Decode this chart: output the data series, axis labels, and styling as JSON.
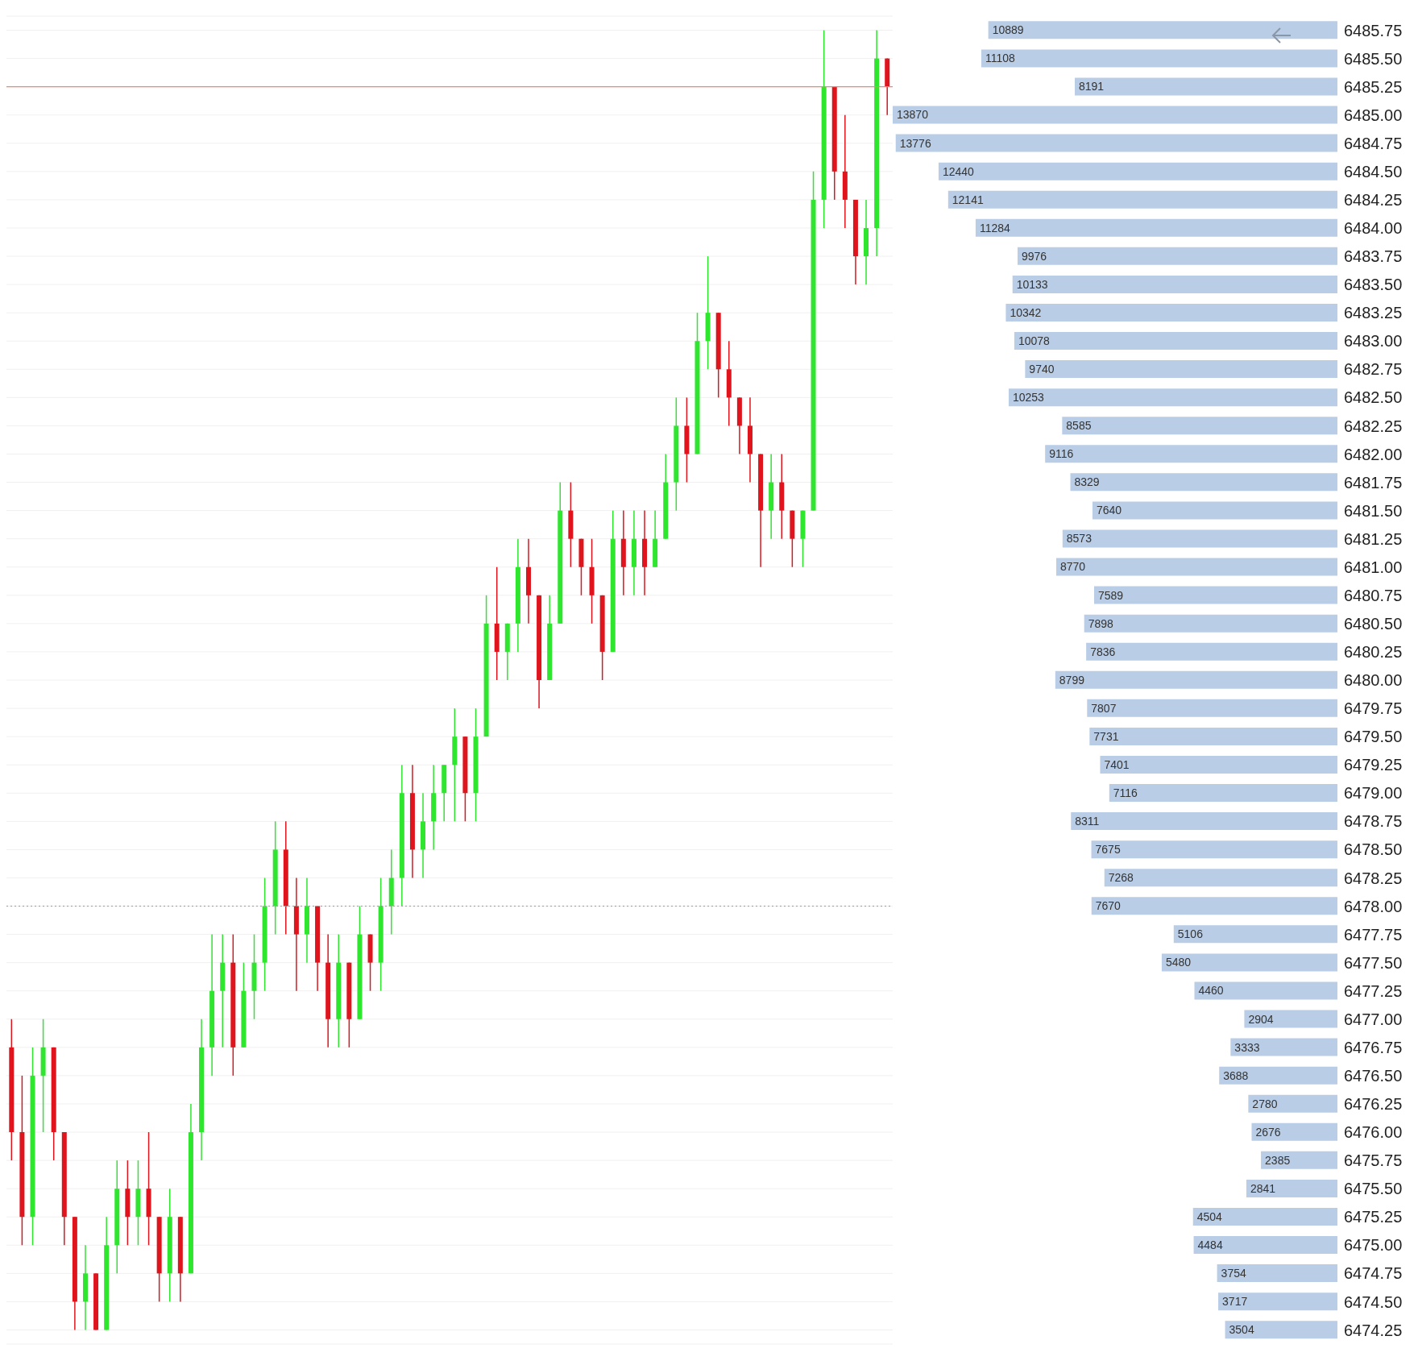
{
  "chart_data": [
    {
      "type": "candlestick",
      "tick_labels": false,
      "grid": "y",
      "categories": [
        null,
        null,
        null,
        null,
        null,
        null,
        null,
        null,
        null,
        null,
        null,
        null,
        null,
        null,
        null,
        null,
        null,
        null,
        null,
        null,
        null,
        null,
        null,
        null,
        null,
        null,
        null,
        null,
        null,
        null,
        null,
        null,
        null,
        null,
        null,
        null,
        null,
        null,
        null,
        null,
        null,
        null,
        null,
        null,
        null,
        null,
        null,
        null,
        null,
        null,
        null,
        null,
        null,
        null,
        null,
        null,
        null,
        null,
        null,
        null,
        null,
        null,
        null,
        null,
        null,
        null,
        null,
        null,
        null,
        null,
        null,
        null,
        null,
        null,
        null,
        null,
        null,
        null,
        null,
        null,
        null,
        null,
        null,
        null
      ],
      "ylim": [
        6474.125,
        6485.875
      ],
      "yticks": [
        6474.25,
        6474.5,
        6474.75,
        6475,
        6475.25,
        6475.5,
        6475.75,
        6476,
        6476.25,
        6476.5,
        6476.75,
        6477,
        6477.25,
        6477.5,
        6477.75,
        6478,
        6478.25,
        6478.5,
        6478.75,
        6479,
        6479.25,
        6479.5,
        6479.75,
        6480,
        6480.25,
        6480.5,
        6480.75,
        6481,
        6481.25,
        6481.5,
        6481.75,
        6482,
        6482.25,
        6482.5,
        6482.75,
        6483,
        6483.25,
        6483.5,
        6483.75,
        6484,
        6484.25,
        6484.5,
        6484.75,
        6485,
        6485.25,
        6485.5,
        6485.75
      ],
      "ohlc": [
        [
          6476.75,
          6477.0,
          6475.75,
          6476.0
        ],
        [
          6476.0,
          6476.5,
          6475.0,
          6475.25
        ],
        [
          6475.25,
          6476.75,
          6475.0,
          6476.5
        ],
        [
          6476.5,
          6477.0,
          6476.0,
          6476.75
        ],
        [
          6476.75,
          6476.75,
          6475.75,
          6476.0
        ],
        [
          6476.0,
          6476.0,
          6475.0,
          6475.25
        ],
        [
          6475.25,
          6475.25,
          6474.25,
          6474.5
        ],
        [
          6474.5,
          6475.0,
          6474.25,
          6474.75
        ],
        [
          6474.75,
          6474.75,
          6474.25,
          6474.25
        ],
        [
          6474.25,
          6475.25,
          6474.25,
          6475.0
        ],
        [
          6475.0,
          6475.75,
          6474.75,
          6475.5
        ],
        [
          6475.5,
          6475.75,
          6475.0,
          6475.25
        ],
        [
          6475.25,
          6475.75,
          6475.0,
          6475.5
        ],
        [
          6475.5,
          6476.0,
          6475.0,
          6475.25
        ],
        [
          6475.25,
          6475.25,
          6474.5,
          6474.75
        ],
        [
          6474.75,
          6475.5,
          6474.5,
          6475.25
        ],
        [
          6475.25,
          6475.25,
          6474.5,
          6474.75
        ],
        [
          6474.75,
          6476.25,
          6474.75,
          6476.0
        ],
        [
          6476.0,
          6477.0,
          6475.75,
          6476.75
        ],
        [
          6476.75,
          6477.75,
          6476.5,
          6477.25
        ],
        [
          6477.25,
          6477.75,
          6476.75,
          6477.5
        ],
        [
          6477.5,
          6477.75,
          6476.5,
          6476.75
        ],
        [
          6476.75,
          6477.5,
          6476.75,
          6477.25
        ],
        [
          6477.25,
          6477.75,
          6477.0,
          6477.5
        ],
        [
          6477.5,
          6478.25,
          6477.25,
          6478.0
        ],
        [
          6478.0,
          6478.75,
          6477.75,
          6478.5
        ],
        [
          6478.5,
          6478.75,
          6477.75,
          6478.0
        ],
        [
          6478.0,
          6478.25,
          6477.25,
          6477.75
        ],
        [
          6477.75,
          6478.25,
          6477.5,
          6478.0
        ],
        [
          6478.0,
          6478.0,
          6477.25,
          6477.5
        ],
        [
          6477.5,
          6477.75,
          6476.75,
          6477.0
        ],
        [
          6477.0,
          6477.75,
          6476.75,
          6477.5
        ],
        [
          6477.5,
          6477.5,
          6476.75,
          6477.0
        ],
        [
          6477.0,
          6478.0,
          6477.0,
          6477.75
        ],
        [
          6477.75,
          6477.75,
          6477.25,
          6477.5
        ],
        [
          6477.5,
          6478.25,
          6477.25,
          6478.0
        ],
        [
          6478.0,
          6478.5,
          6477.75,
          6478.25
        ],
        [
          6478.25,
          6479.25,
          6478.0,
          6479.0
        ],
        [
          6479.0,
          6479.25,
          6478.25,
          6478.5
        ],
        [
          6478.5,
          6479.0,
          6478.25,
          6478.75
        ],
        [
          6478.75,
          6479.25,
          6478.5,
          6479.0
        ],
        [
          6479.0,
          6479.25,
          6478.75,
          6479.25
        ],
        [
          6479.25,
          6479.75,
          6478.75,
          6479.5
        ],
        [
          6479.5,
          6479.5,
          6478.75,
          6479.0
        ],
        [
          6479.0,
          6479.75,
          6478.75,
          6479.5
        ],
        [
          6479.5,
          6480.75,
          6479.5,
          6480.5
        ],
        [
          6480.5,
          6481.0,
          6480.0,
          6480.25
        ],
        [
          6480.25,
          6480.5,
          6480.0,
          6480.5
        ],
        [
          6480.5,
          6481.25,
          6480.25,
          6481.0
        ],
        [
          6481.0,
          6481.25,
          6480.5,
          6480.75
        ],
        [
          6480.75,
          6480.75,
          6479.75,
          6480.0
        ],
        [
          6480.0,
          6480.75,
          6480.0,
          6480.5
        ],
        [
          6480.5,
          6481.75,
          6480.5,
          6481.5
        ],
        [
          6481.5,
          6481.75,
          6481.0,
          6481.25
        ],
        [
          6481.25,
          6481.25,
          6480.75,
          6481.0
        ],
        [
          6481.0,
          6481.25,
          6480.5,
          6480.75
        ],
        [
          6480.75,
          6480.75,
          6480.0,
          6480.25
        ],
        [
          6480.25,
          6481.5,
          6480.25,
          6481.25
        ],
        [
          6481.25,
          6481.5,
          6480.75,
          6481.0
        ],
        [
          6481.0,
          6481.5,
          6480.75,
          6481.25
        ],
        [
          6481.25,
          6481.5,
          6480.75,
          6481.0
        ],
        [
          6481.0,
          6481.5,
          6481.0,
          6481.25
        ],
        [
          6481.25,
          6482.0,
          6481.25,
          6481.75
        ],
        [
          6481.75,
          6482.5,
          6481.5,
          6482.25
        ],
        [
          6482.25,
          6482.5,
          6481.75,
          6482.0
        ],
        [
          6482.0,
          6483.25,
          6482.0,
          6483.0
        ],
        [
          6483.0,
          6483.75,
          6482.75,
          6483.25
        ],
        [
          6483.25,
          6483.25,
          6482.5,
          6482.75
        ],
        [
          6482.75,
          6483.0,
          6482.25,
          6482.5
        ],
        [
          6482.5,
          6482.5,
          6482.0,
          6482.25
        ],
        [
          6482.25,
          6482.5,
          6481.75,
          6482.0
        ],
        [
          6482.0,
          6482.0,
          6481.0,
          6481.5
        ],
        [
          6481.5,
          6482.0,
          6481.25,
          6481.75
        ],
        [
          6481.75,
          6482.0,
          6481.25,
          6481.5
        ],
        [
          6481.5,
          6481.5,
          6481.0,
          6481.25
        ],
        [
          6481.25,
          6481.5,
          6481.0,
          6481.5
        ],
        [
          6481.5,
          6484.5,
          6481.5,
          6484.25
        ],
        [
          6484.25,
          6485.75,
          6484.0,
          6485.25
        ],
        [
          6485.25,
          6485.25,
          6484.25,
          6484.5
        ],
        [
          6484.5,
          6485.0,
          6484.0,
          6484.25
        ],
        [
          6484.25,
          6484.25,
          6483.5,
          6483.75
        ],
        [
          6483.75,
          6484.25,
          6483.5,
          6484.0
        ],
        [
          6484.0,
          6485.75,
          6483.75,
          6485.5
        ],
        [
          6485.5,
          6485.5,
          6485.0,
          6485.25
        ]
      ],
      "colors": [
        "#e0141c",
        "#e0141c",
        "#2ee62e",
        "#2ee62e",
        "#e0141c",
        "#e0141c",
        "#e0141c",
        "#2ee62e",
        "#e0141c",
        "#2ee62e",
        "#2ee62e",
        "#e0141c",
        "#2ee62e",
        "#e0141c",
        "#e0141c",
        "#2ee62e",
        "#e0141c",
        "#2ee62e",
        "#2ee62e",
        "#2ee62e",
        "#2ee62e",
        "#e0141c",
        "#2ee62e",
        "#2ee62e",
        "#2ee62e",
        "#2ee62e",
        "#e0141c",
        "#e0141c",
        "#2ee62e",
        "#e0141c",
        "#e0141c",
        "#2ee62e",
        "#e0141c",
        "#2ee62e",
        "#e0141c",
        "#2ee62e",
        "#2ee62e",
        "#2ee62e",
        "#e0141c",
        "#2ee62e",
        "#2ee62e",
        "#2ee62e",
        "#2ee62e",
        "#e0141c",
        "#2ee62e",
        "#2ee62e",
        "#e0141c",
        "#2ee62e",
        "#2ee62e",
        "#e0141c",
        "#e0141c",
        "#2ee62e",
        "#2ee62e",
        "#e0141c",
        "#e0141c",
        "#e0141c",
        "#e0141c",
        "#2ee62e",
        "#e0141c",
        "#2ee62e",
        "#e0141c",
        "#2ee62e",
        "#2ee62e",
        "#2ee62e",
        "#e0141c",
        "#2ee62e",
        "#2ee62e",
        "#e0141c",
        "#e0141c",
        "#e0141c",
        "#e0141c",
        "#e0141c",
        "#2ee62e",
        "#e0141c",
        "#e0141c",
        "#2ee62e",
        "#2ee62e",
        "#2ee62e",
        "#e0141c",
        "#e0141c",
        "#e0141c",
        "#2ee62e",
        "#2ee62e",
        "#e0141c"
      ],
      "ref_lines": [
        {
          "axis": "y",
          "value": 6485.25,
          "color": "#f4846a",
          "line_style": "solid"
        },
        {
          "axis": "y",
          "value": 6478.0,
          "color": "#999999",
          "line_style": "dotted"
        }
      ]
    },
    {
      "type": "bar",
      "orientation": "horizontal",
      "data_labels": true,
      "color": "#b9cde6",
      "categories": [
        "6485.75",
        "6485.50",
        "6485.25",
        "6485.00",
        "6484.75",
        "6484.50",
        "6484.25",
        "6484.00",
        "6483.75",
        "6483.50",
        "6483.25",
        "6483.00",
        "6482.75",
        "6482.50",
        "6482.25",
        "6482.00",
        "6481.75",
        "6481.50",
        "6481.25",
        "6481.00",
        "6480.75",
        "6480.50",
        "6480.25",
        "6480.00",
        "6479.75",
        "6479.50",
        "6479.25",
        "6479.00",
        "6478.75",
        "6478.50",
        "6478.25",
        "6478.00",
        "6477.75",
        "6477.50",
        "6477.25",
        "6477.00",
        "6476.75",
        "6476.50",
        "6476.25",
        "6476.00",
        "6475.75",
        "6475.50",
        "6475.25",
        "6475.00",
        "6474.75",
        "6474.50",
        "6474.25"
      ],
      "values": [
        10889,
        11108,
        8191,
        13870,
        13776,
        12440,
        12141,
        11284,
        9976,
        10133,
        10342,
        10078,
        9740,
        10253,
        8585,
        9116,
        8329,
        7640,
        8573,
        8770,
        7589,
        7898,
        7836,
        8799,
        7807,
        7731,
        7401,
        7116,
        8311,
        7675,
        7268,
        7670,
        5106,
        5480,
        4460,
        2904,
        3333,
        3688,
        2780,
        2676,
        2385,
        2841,
        4504,
        4484,
        3754,
        3717,
        3504
      ]
    }
  ]
}
